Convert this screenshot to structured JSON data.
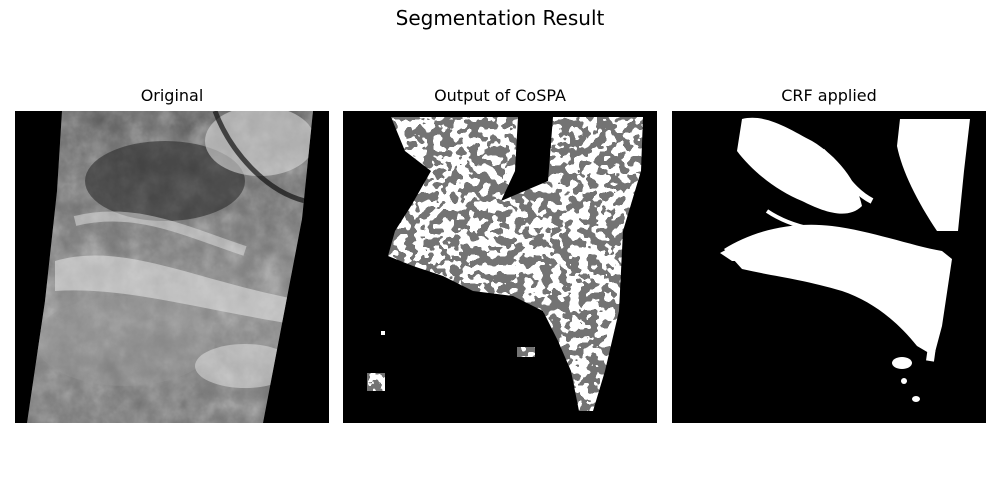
{
  "figure": {
    "title": "Segmentation Result"
  },
  "panels": [
    {
      "title": "Original",
      "content": "satellite-grayscale"
    },
    {
      "title": "Output of CoSPA",
      "content": "pixel-mask"
    },
    {
      "title": "CRF applied",
      "content": "smooth-mask"
    }
  ],
  "colors": {
    "background": "#ffffff",
    "mask_background": "#000000",
    "mask_foreground": "#ffffff"
  }
}
